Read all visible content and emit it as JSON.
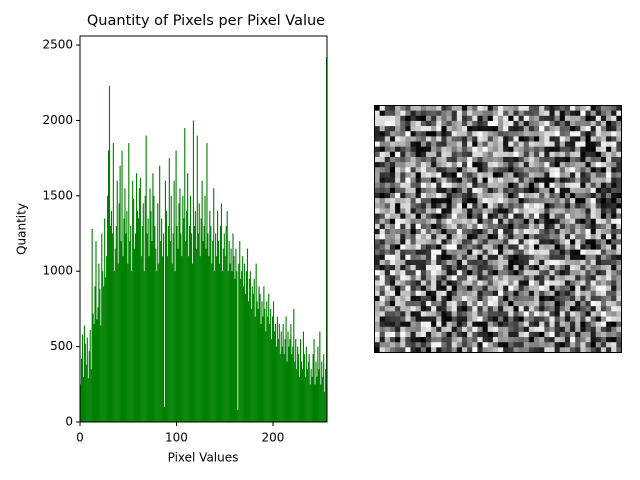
{
  "chart_data": {
    "type": "histogram",
    "title": "Quantity of Pixels per Pixel Value",
    "x_label": "Pixel Values",
    "y_label": "Quantity",
    "color": "#008000",
    "bins": [
      0,
      1,
      2,
      3,
      4,
      5,
      6,
      7,
      8,
      9,
      10,
      11,
      12,
      13,
      14,
      15,
      16,
      17,
      18,
      19,
      20,
      21,
      22,
      23,
      24,
      25,
      26,
      27,
      28,
      29,
      30,
      31,
      32,
      33,
      34,
      35,
      36,
      37,
      38,
      39,
      40,
      41,
      42,
      43,
      44,
      45,
      46,
      47,
      48,
      49,
      50,
      51,
      52,
      53,
      54,
      55,
      56,
      57,
      58,
      59,
      60,
      61,
      62,
      63,
      64,
      65,
      66,
      67,
      68,
      69,
      70,
      71,
      72,
      73,
      74,
      75,
      76,
      77,
      78,
      79,
      80,
      81,
      82,
      83,
      84,
      85,
      86,
      87,
      88,
      89,
      90,
      91,
      92,
      93,
      94,
      95,
      96,
      97,
      98,
      99,
      100,
      101,
      102,
      103,
      104,
      105,
      106,
      107,
      108,
      109,
      110,
      111,
      112,
      113,
      114,
      115,
      116,
      117,
      118,
      119,
      120,
      121,
      122,
      123,
      124,
      125,
      126,
      127,
      128,
      129,
      130,
      131,
      132,
      133,
      134,
      135,
      136,
      137,
      138,
      139,
      140,
      141,
      142,
      143,
      144,
      145,
      146,
      147,
      148,
      149,
      150,
      151,
      152,
      153,
      154,
      155,
      156,
      157,
      158,
      159,
      160,
      161,
      162,
      163,
      164,
      165,
      166,
      167,
      168,
      169,
      170,
      171,
      172,
      173,
      174,
      175,
      176,
      177,
      178,
      179,
      180,
      181,
      182,
      183,
      184,
      185,
      186,
      187,
      188,
      189,
      190,
      191,
      192,
      193,
      194,
      195,
      196,
      197,
      198,
      199,
      200,
      201,
      202,
      203,
      204,
      205,
      206,
      207,
      208,
      209,
      210,
      211,
      212,
      213,
      214,
      215,
      216,
      217,
      218,
      219,
      220,
      221,
      222,
      223,
      224,
      225,
      226,
      227,
      228,
      229,
      230,
      231,
      232,
      233,
      234,
      235,
      236,
      237,
      238,
      239,
      240,
      241,
      242,
      243,
      244,
      245,
      246,
      247,
      248,
      249,
      250,
      251,
      252,
      253,
      254,
      255,
      256
    ],
    "values": [
      250,
      420,
      580,
      300,
      640,
      520,
      380,
      560,
      290,
      470,
      610,
      350,
      1280,
      720,
      650,
      900,
      1200,
      680,
      760,
      1050,
      880,
      640,
      1250,
      1000,
      900,
      1350,
      960,
      1100,
      1500,
      1800,
      2230,
      1300,
      1400,
      1250,
      1850,
      1000,
      1150,
      1300,
      1600,
      1050,
      1450,
      1700,
      1200,
      1800,
      1100,
      1350,
      1550,
      1250,
      1400,
      1050,
      1850,
      1200,
      1300,
      1000,
      1600,
      1480,
      1150,
      1250,
      1650,
      1400,
      1350,
      1550,
      1620,
      1100,
      1300,
      1450,
      1000,
      1500,
      1900,
      1250,
      1350,
      1100,
      1550,
      1400,
      1200,
      1650,
      1500,
      1300,
      1150,
      1000,
      1450,
      1050,
      1700,
      1200,
      1350,
      1100,
      1250,
      100,
      1600,
      1400,
      1100,
      1300,
      1750,
      1200,
      1500,
      1050,
      1250,
      1600,
      1000,
      1800,
      1300,
      1150,
      1450,
      1550,
      1250,
      1100,
      1500,
      1350,
      1950,
      1200,
      1400,
      1650,
      1100,
      1300,
      1500,
      1250,
      1050,
      2000,
      1300,
      1400,
      1150,
      1900,
      1250,
      1450,
      1100,
      1350,
      1600,
      1200,
      1300,
      1500,
      1150,
      1850,
      1250,
      1100,
      1400,
      1300,
      1050,
      1200,
      1550,
      1000,
      1250,
      1100,
      1400,
      1200,
      1050,
      1300,
      1450,
      1000,
      1150,
      1250,
      1100,
      1300,
      1400,
      1000,
      1200,
      1050,
      1150,
      1000,
      1250,
      1100,
      950,
      1150,
      1000,
      80,
      1050,
      1200,
      950,
      1000,
      1100,
      900,
      1050,
      850,
      1000,
      1150,
      800,
      950,
      1000,
      750,
      900,
      850,
      950,
      700,
      1050,
      800,
      750,
      900,
      850,
      650,
      800,
      700,
      900,
      750,
      600,
      800,
      700,
      850,
      650,
      750,
      550,
      700,
      800,
      600,
      650,
      500,
      700,
      550,
      650,
      450,
      600,
      500,
      650,
      450,
      550,
      700,
      400,
      600,
      500,
      550,
      650,
      450,
      500,
      750,
      400,
      550,
      350,
      500,
      450,
      300,
      550,
      400,
      350,
      600,
      450,
      300,
      500,
      350,
      400,
      450,
      250,
      350,
      300,
      450,
      550,
      250,
      400,
      300,
      500,
      350,
      600,
      250,
      400,
      300,
      450,
      200,
      350,
      2420
    ],
    "xlim": [
      0,
      256
    ],
    "ylim": [
      0,
      2560
    ],
    "xticks": [
      0,
      100,
      200
    ],
    "yticks": [
      0,
      500,
      1000,
      1500,
      2000,
      2500
    ]
  }
}
